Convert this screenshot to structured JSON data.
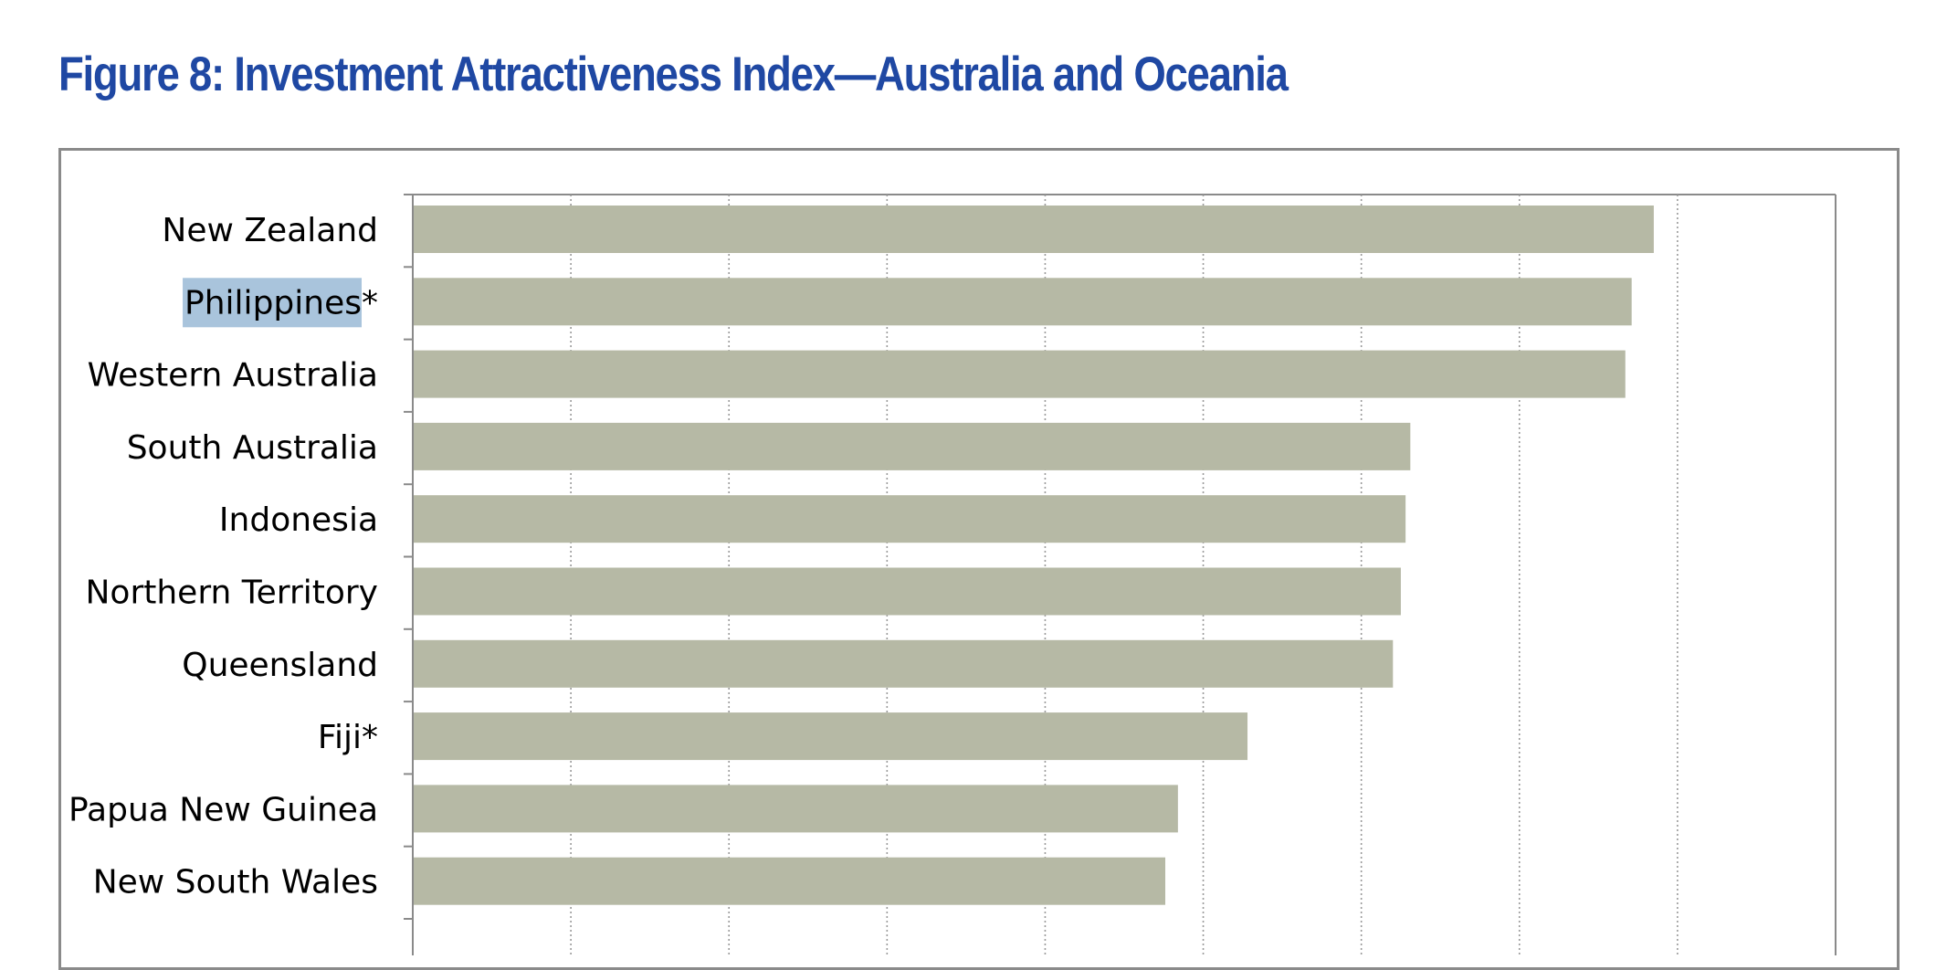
{
  "page": {
    "title": "Figure 8: Investment Attractiveness Index—Australia and Oceania"
  },
  "colors": {
    "title": "#1f48a3",
    "bar": "#b6b9a5",
    "highlight": "#a9c4dc",
    "gridline": "#9a9a9a",
    "axis": "#8a8a8a"
  },
  "highlighted_label": "Philippines",
  "chart_data": {
    "type": "bar",
    "orientation": "horizontal",
    "categories": [
      "New Zealand",
      "Philippines*",
      "Western Australia",
      "South Australia",
      "Indonesia",
      "Northern Territory",
      "Queensland",
      "Fiji*",
      "Papua New Guinea",
      "New South Wales"
    ],
    "values": [
      78.5,
      77.1,
      76.7,
      63.1,
      62.8,
      62.5,
      62.0,
      52.8,
      48.4,
      47.6
    ],
    "xlim": [
      0,
      90
    ],
    "x_gridline_step": 10,
    "x_gridlines": "dotted",
    "x_tick_labels_visible": false,
    "title": "",
    "xlabel": "",
    "ylabel": "",
    "legend": "none"
  }
}
